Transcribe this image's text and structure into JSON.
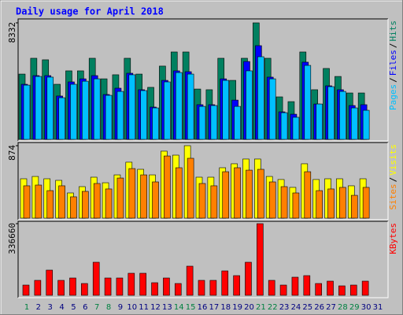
{
  "title": "Daily usage for April 2018",
  "separator": "/",
  "chart_data": [
    {
      "type": "bar",
      "ylim": [
        0,
        8332
      ],
      "yticks": [
        8332
      ],
      "series": [
        {
          "name": "Hits",
          "color": "#008060",
          "values": [
            4670,
            5800,
            5690,
            3940,
            4900,
            4900,
            5800,
            4330,
            4620,
            5800,
            4670,
            3720,
            5240,
            6250,
            6250,
            3600,
            3550,
            5800,
            4220,
            5800,
            8332,
            5800,
            3040,
            2700,
            6250,
            3550,
            5070,
            4500,
            3320,
            3320,
            null
          ]
        },
        {
          "name": "Files",
          "color": "#0000ff",
          "values": [
            3940,
            4560,
            4560,
            3100,
            4110,
            4330,
            4560,
            3210,
            3660,
            4730,
            3550,
            2310,
            4220,
            4900,
            4840,
            2480,
            2480,
            4330,
            2810,
            5570,
            6700,
            4450,
            1970,
            1800,
            5520,
            2530,
            3830,
            3550,
            2420,
            2480,
            null
          ]
        },
        {
          "name": "Pages",
          "color": "#00c0ff",
          "values": [
            3880,
            4500,
            4450,
            2980,
            3940,
            4160,
            4330,
            3150,
            3430,
            4620,
            3490,
            2250,
            4110,
            4780,
            4670,
            2360,
            2420,
            4220,
            2360,
            4900,
            5910,
            4330,
            1910,
            1580,
            5290,
            2530,
            3770,
            3430,
            2250,
            2080,
            null
          ]
        }
      ]
    },
    {
      "type": "bar",
      "ylim": [
        0,
        874
      ],
      "yticks": [
        874
      ],
      "series": [
        {
          "name": "Visits",
          "color": "#ffff00",
          "values": [
            475,
            503,
            475,
            456,
            304,
            380,
            494,
            427,
            522,
            675,
            589,
            522,
            808,
            760,
            874,
            494,
            494,
            608,
            656,
            713,
            713,
            503,
            466,
            371,
            656,
            466,
            475,
            475,
            390,
            475,
            null
          ]
        },
        {
          "name": "Sites",
          "color": "#ff8000",
          "values": [
            390,
            399,
            332,
            390,
            257,
            323,
            418,
            352,
            484,
            598,
            522,
            437,
            750,
            608,
            722,
            418,
            390,
            560,
            608,
            579,
            589,
            437,
            380,
            304,
            560,
            332,
            352,
            371,
            275,
            371,
            null
          ]
        }
      ]
    },
    {
      "type": "bar",
      "ylim": [
        0,
        336660
      ],
      "yticks": [
        336660
      ],
      "categories": [
        "1",
        "2",
        "3",
        "4",
        "5",
        "6",
        "7",
        "8",
        "9",
        "10",
        "11",
        "12",
        "13",
        "14",
        "15",
        "16",
        "17",
        "18",
        "19",
        "20",
        "21",
        "22",
        "23",
        "24",
        "25",
        "26",
        "27",
        "28",
        "29",
        "30",
        "31"
      ],
      "weekends": [
        "1",
        "7",
        "8",
        "14",
        "15",
        "21",
        "22",
        "28",
        "29"
      ],
      "weekend_color": "#008040",
      "label_color": "#000080",
      "series": [
        {
          "name": "KBytes",
          "color": "#ff0000",
          "values": [
            48100,
            70300,
            118400,
            70300,
            81400,
            55500,
            155400,
            81400,
            81400,
            103600,
            103600,
            59200,
            81400,
            55500,
            136900,
            70300,
            70300,
            114700,
            92500,
            155400,
            336660,
            70300,
            48100,
            85100,
            92500,
            55500,
            66600,
            44400,
            48100,
            66600,
            null
          ]
        }
      ]
    }
  ]
}
